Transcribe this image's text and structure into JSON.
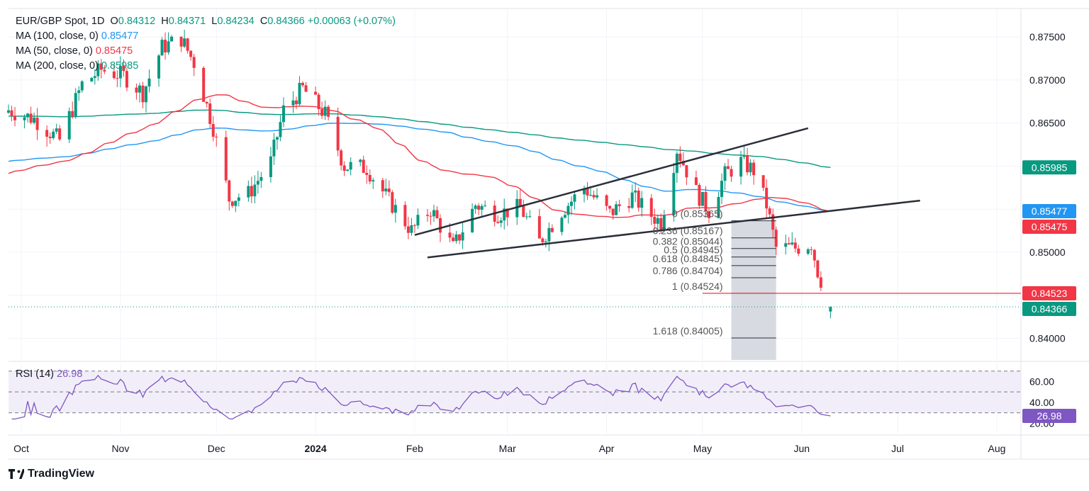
{
  "header": {
    "symbol": "EUR/GBP Spot, 1D",
    "open_label": "O",
    "open": "0.84312",
    "high_label": "H",
    "high": "0.84371",
    "low_label": "L",
    "low": "0.84234",
    "close_label": "C",
    "close": "0.84366",
    "change": "+0.00063 (+0.07%)",
    "ma100_label": "MA (100, close, 0)",
    "ma100_value": "0.85477",
    "ma50_label": "MA (50, close, 0)",
    "ma50_value": "0.85475",
    "ma200_label": "MA (200, close, 0)",
    "ma200_value": "0.85985",
    "rsi_label": "RSI (14)",
    "rsi_value": "26.98"
  },
  "footer": {
    "brand": "TradingView"
  },
  "colors": {
    "up": "#089981",
    "down": "#F23645",
    "ma100": "#2196F3",
    "ma50": "#F23645",
    "ma200": "#089981",
    "rsi": "#7E57C2",
    "rsi_band": "#EDE7F6",
    "text": "#131722"
  },
  "chart_data": {
    "type": "candlestick",
    "price_axis": {
      "ticks": [
        "0.87500",
        "0.87000",
        "0.86500",
        "0.86000",
        "0.85500",
        "0.85000",
        "0.84500",
        "0.84000"
      ],
      "range": [
        0.8375,
        0.8783
      ]
    },
    "time_axis": [
      "Oct",
      "Nov",
      "Dec",
      "2024",
      "Feb",
      "Mar",
      "Apr",
      "May",
      "Jun",
      "Jul",
      "Aug"
    ],
    "price_labels": [
      {
        "value": "0.85985",
        "color": "#089981"
      },
      {
        "value": "0.85477",
        "color": "#2196F3"
      },
      {
        "value": "0.85475",
        "color": "#F23645"
      },
      {
        "value": "0.84523",
        "color": "#F23645"
      },
      {
        "value": "0.84366",
        "color": "#089981"
      }
    ],
    "horizontal_line": 0.84523,
    "last_close": 0.84366,
    "fib_levels": [
      {
        "label": "0 (0.85365)",
        "value": 0.85365
      },
      {
        "label": "0.236 (0.85167)",
        "value": 0.85167
      },
      {
        "label": "0.382 (0.85044)",
        "value": 0.85044
      },
      {
        "label": "0.5 (0.84945)",
        "value": 0.84945
      },
      {
        "label": "0.618 (0.84845)",
        "value": 0.84845
      },
      {
        "label": "0.786 (0.84704)",
        "value": 0.84704
      },
      {
        "label": "1 (0.84524)",
        "value": 0.84524
      },
      {
        "label": "1.618 (0.84005)",
        "value": 0.84005
      }
    ],
    "channel": {
      "upper": [
        {
          "date": "2024-02-01",
          "price": 0.852
        },
        {
          "date": "2024-06-03",
          "price": 0.8644
        }
      ],
      "lower": [
        {
          "date": "2024-02-05",
          "price": 0.8494
        },
        {
          "date": "2024-07-08",
          "price": 0.856
        }
      ]
    },
    "rsi": {
      "ticks": [
        "60.00",
        "40.00",
        "20.00"
      ],
      "levels": [
        70,
        50,
        30
      ],
      "last": 26.98,
      "range": [
        10,
        78
      ]
    },
    "key_prices": [
      {
        "date": "2023-11-20",
        "price": 0.8765,
        "note": "high"
      },
      {
        "date": "2023-12-05",
        "price": 0.855,
        "note": "low"
      },
      {
        "date": "2023-12-28",
        "price": 0.8715,
        "note": "high"
      },
      {
        "date": "2024-02-13",
        "price": 0.8499,
        "note": "low"
      },
      {
        "date": "2024-04-23",
        "price": 0.8644,
        "note": "high"
      },
      {
        "date": "2024-05-09",
        "price": 0.862,
        "note": "high"
      },
      {
        "date": "2024-06-10",
        "price": 0.8437,
        "note": "last"
      }
    ]
  }
}
